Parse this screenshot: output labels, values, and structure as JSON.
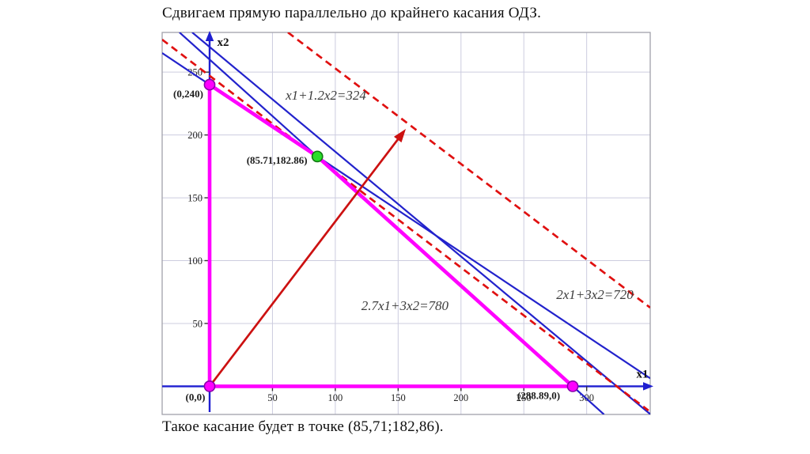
{
  "slide": {
    "title": "Сдвигаем прямую параллельно до крайнего касания ОДЗ.",
    "caption": "Такое касание будет в точке (85,71;182,86)."
  },
  "colors": {
    "axis_blue": "#1f1fd0",
    "line_blue": "#2222cc",
    "dashed_red": "#e01010",
    "arrow_red": "#cc1111",
    "magenta": "#ff00ff",
    "green_point": "#2bdd2b",
    "grid": "#ccccdf",
    "border": "#a2a2aa",
    "tick_text": "#222222",
    "equation_text": "#3c3c3c"
  },
  "chart_data": {
    "type": "line",
    "title": "",
    "xlabel": "x1",
    "ylabel": "x2",
    "xlim": [
      -37.8,
      350.6
    ],
    "ylim": [
      -22.4,
      281.6
    ],
    "x_ticks": [
      50,
      100,
      150,
      200,
      250,
      300
    ],
    "y_ticks": [
      50,
      100,
      150,
      200,
      250
    ],
    "grid": true,
    "lines": [
      {
        "id": "constraint-720",
        "equation": "2x1+3x2=720",
        "style": "solid",
        "color": "#2222cc",
        "points": [
          [
            -37.8,
            265.2
          ],
          [
            350.6,
            6.3
          ]
        ]
      },
      {
        "id": "constraint-324",
        "equation": "x1+1.2x2=324",
        "style": "solid",
        "color": "#2222cc",
        "points": [
          [
            -13.9,
            281.6
          ],
          [
            350.6,
            -22.2
          ]
        ]
      },
      {
        "id": "line-780",
        "equation": "2.7x1+3x2=780",
        "style": "solid",
        "color": "#2222cc",
        "points": [
          [
            -24.0,
            281.6
          ],
          [
            313.8,
            -22.4
          ]
        ]
      },
      {
        "id": "objective-shift-1",
        "equation": "",
        "style": "dashed",
        "color": "#e01010",
        "points": [
          [
            -37.8,
            275.9
          ],
          [
            349.2,
            -19.3
          ]
        ]
      },
      {
        "id": "objective-shift-2",
        "equation": "",
        "style": "dashed",
        "color": "#e01010",
        "points": [
          [
            62.3,
            281.6
          ],
          [
            350.5,
            62.6
          ]
        ]
      }
    ],
    "equation_labels": [
      {
        "text": "x1+1.2x2=324",
        "x": 92.5,
        "y": 228.1
      },
      {
        "text": "2x1+3x2=720",
        "x": 306.5,
        "y": 69.5
      },
      {
        "text": "2.7x1+3x2=780",
        "x": 155.4,
        "y": 60.7
      }
    ],
    "feasible_region": {
      "vertices": [
        [
          0,
          0
        ],
        [
          0,
          240
        ],
        [
          85.71,
          182.86
        ],
        [
          288.89,
          0
        ]
      ],
      "color": "#ff00ff"
    },
    "gradient_arrow": {
      "from": [
        0,
        0
      ],
      "to": [
        156.1,
        204.8
      ],
      "color": "#cc1111"
    },
    "points": [
      {
        "label": "(0,0)",
        "x": 0,
        "y": 0,
        "color": "#ff00ff",
        "stroke": "#8a00aa"
      },
      {
        "label": "(0,240)",
        "x": 0,
        "y": 240,
        "color": "#ff00ff",
        "stroke": "#8a00aa"
      },
      {
        "label": "(288.89,0)",
        "x": 288.89,
        "y": 0,
        "color": "#ff00ff",
        "stroke": "#8a00aa"
      },
      {
        "label": "(85.71,182.86)",
        "x": 85.71,
        "y": 182.86,
        "color": "#2bdd2b",
        "stroke": "#117711"
      }
    ],
    "optimal_point": {
      "x": 85.71,
      "y": 182.86
    }
  }
}
